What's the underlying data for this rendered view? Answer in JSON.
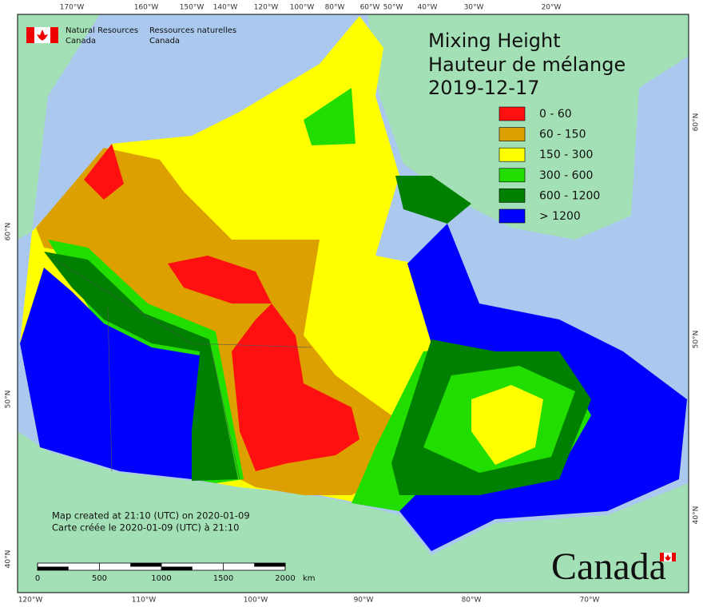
{
  "header": {
    "agency_en": [
      "Natural Resources",
      "Canada"
    ],
    "agency_fr": [
      "Ressources naturelles",
      "Canada"
    ]
  },
  "title": [
    "Mixing Height",
    "Hauteur de mélange",
    "2019-12-17"
  ],
  "legend": [
    {
      "label": "0 - 60",
      "color": "#ff1010"
    },
    {
      "label": "60 - 150",
      "color": "#dca000"
    },
    {
      "label": "150 - 300",
      "color": "#ffff00"
    },
    {
      "label": "300 - 600",
      "color": "#22dd00"
    },
    {
      "label": "600 - 1200",
      "color": "#008000"
    },
    {
      "label": "> 1200",
      "color": "#0000ff"
    }
  ],
  "graticule": {
    "top": [
      "170°W",
      "160°W",
      "150°W",
      "140°W",
      "120°W",
      "100°W",
      "80°W",
      "60°W",
      "50°W",
      "40°W",
      "30°W",
      "20°W"
    ],
    "bottom": [
      "120°W",
      "110°W",
      "100°W",
      "90°W",
      "80°W",
      "70°W"
    ],
    "left": [
      "60°N",
      "50°N",
      "40°N"
    ],
    "right": [
      "60°N",
      "50°N",
      "40°N"
    ]
  },
  "footer": {
    "created": [
      "Map created at 21:10 (UTC) on 2020-01-09",
      "Carte créée le 2020-01-09 (UTC) à 21:10"
    ],
    "scale_bar": {
      "ticks": [
        0,
        500,
        1000,
        1500,
        2000
      ],
      "unit": "km"
    },
    "wordmark": "Canada"
  }
}
